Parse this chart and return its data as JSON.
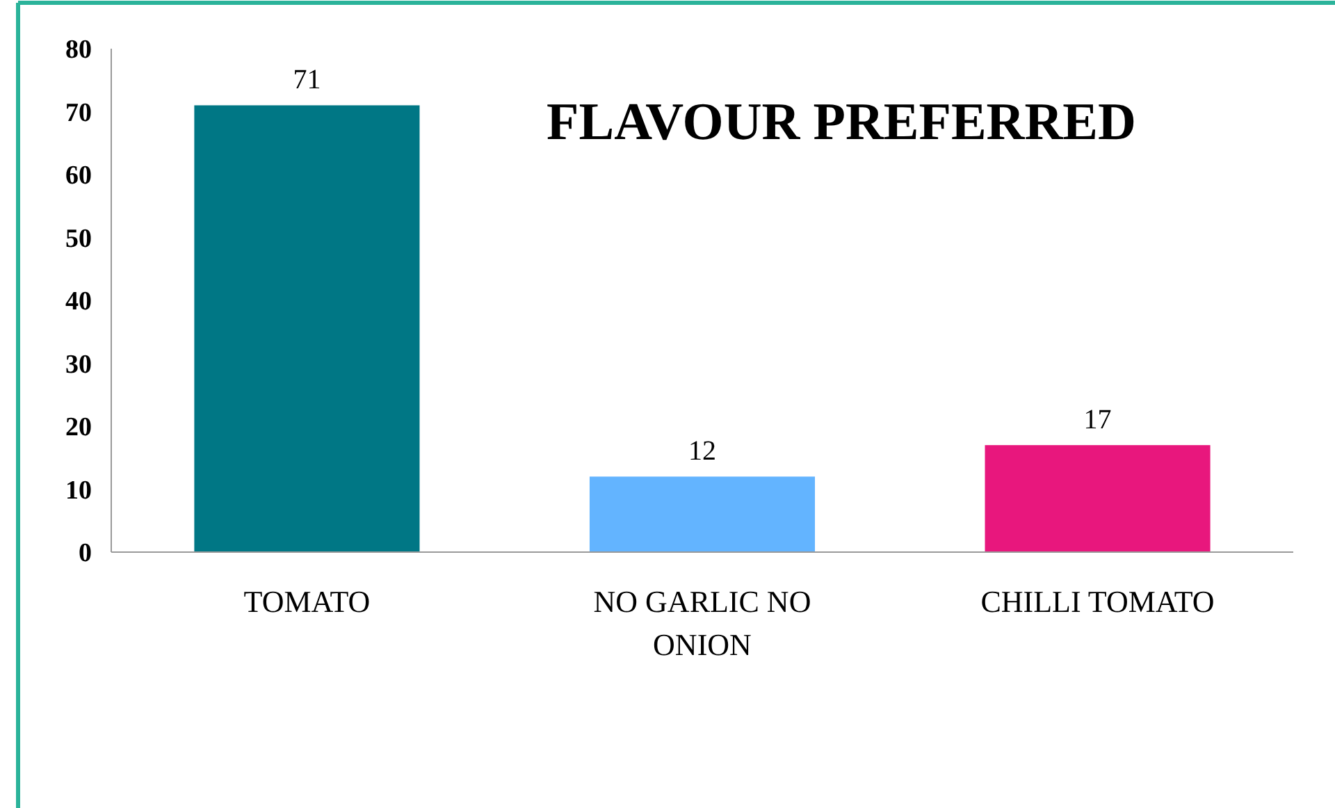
{
  "chart_data": {
    "type": "bar",
    "title": "FLAVOUR PREFERRED",
    "categories": [
      "TOMATO",
      "NO GARLIC NO ONION",
      "CHILLI TOMATO"
    ],
    "values": [
      71,
      12,
      17
    ],
    "colors": [
      "#007785",
      "#63b4ff",
      "#e8177d"
    ],
    "ylim": [
      0,
      80
    ],
    "yticks": [
      0,
      10,
      20,
      30,
      40,
      50,
      60,
      70,
      80
    ],
    "grid": false,
    "data_labels": true
  }
}
